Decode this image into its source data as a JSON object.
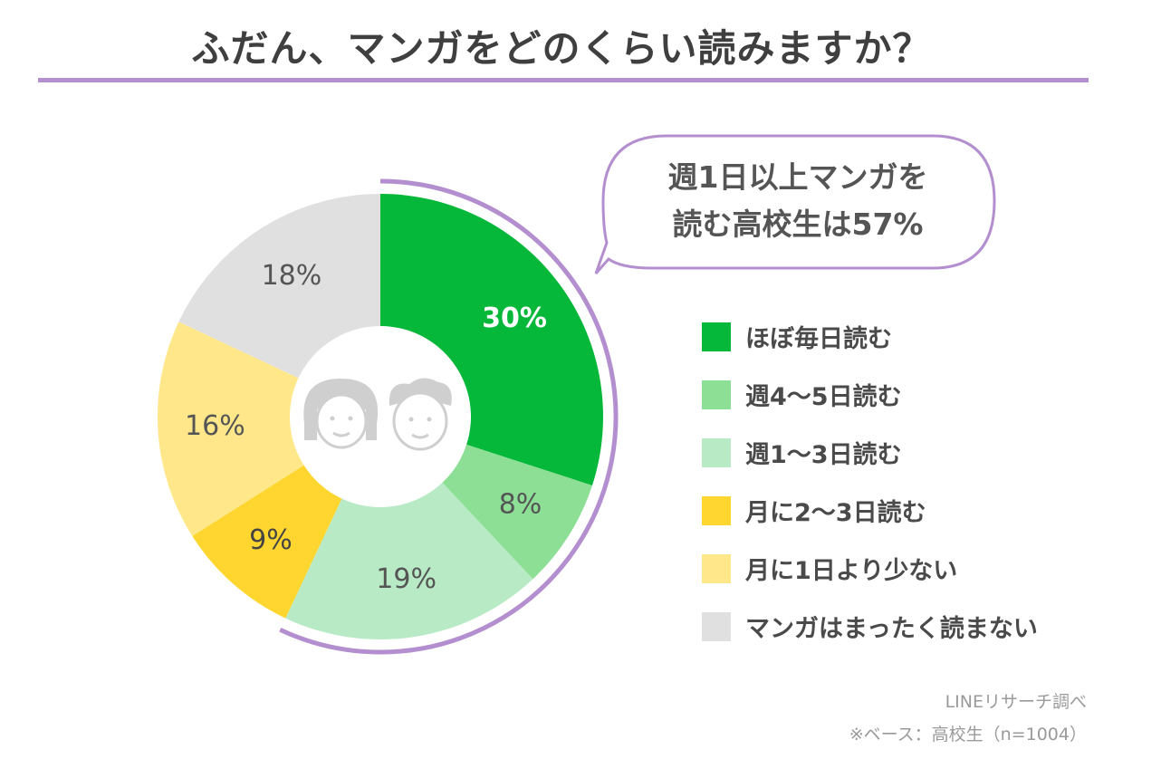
{
  "title": "ふだん、マンガをどのくらい読みますか？",
  "callout": {
    "line1": "週1日以上マンガを",
    "line2": "読む高校生は57%"
  },
  "source": {
    "line1": "LINEリサーチ調べ",
    "line2": "※ベース：高校生（n=1004）"
  },
  "colors": {
    "accent": "#b48fcf",
    "center_icons": "#cfcfcf",
    "slices": [
      "#06b83a",
      "#8ddf96",
      "#b8ebc5",
      "#ffd630",
      "#ffe78a",
      "#e0e0e0"
    ]
  },
  "icons": {
    "center": "two-faces-icon"
  },
  "chart_data": {
    "type": "pie",
    "variant": "donut",
    "title": "ふだん、マンガをどのくらい読みますか？",
    "unit": "%",
    "categories": [
      "ほぼ毎日読む",
      "週4〜5日読む",
      "週1〜3日読む",
      "月に2〜3日読む",
      "月に1日より少ない",
      "マンガはまったく読まない"
    ],
    "values": [
      30,
      8,
      19,
      9,
      16,
      18
    ],
    "labels": [
      "30%",
      "8%",
      "19%",
      "9%",
      "16%",
      "18%"
    ],
    "legend_position": "right",
    "highlight": {
      "from_category": 0,
      "to_category": 2,
      "total": 57
    }
  }
}
